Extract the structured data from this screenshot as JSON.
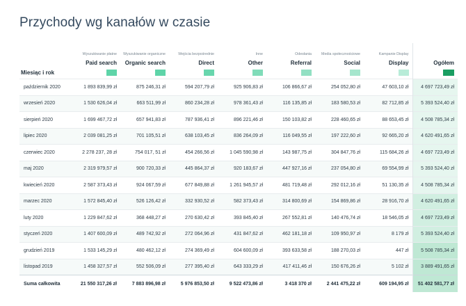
{
  "title": "Przychody wg kanałów w czasie",
  "row_header": "Miesiąc i rok",
  "colors": {
    "paid_search": "#5ed4a8",
    "organic_search": "#5ed4a8",
    "direct": "#68d6ad",
    "other": "#80dcb9",
    "referral": "#92e0c3",
    "social": "#a5e6cd",
    "display": "#b8ecd8",
    "total": "#1a9e62"
  },
  "columns": [
    {
      "sub": "Wyszukiwanie płatne",
      "label": "Paid search",
      "color": "#5ed4a8"
    },
    {
      "sub": "Wyszukiwanie organiczne",
      "label": "Organic search",
      "color": "#5ed4a8"
    },
    {
      "sub": "Wejścia bezpośrednie",
      "label": "Direct",
      "color": "#68d6ad"
    },
    {
      "sub": "Inne",
      "label": "Other",
      "color": "#80dcb9"
    },
    {
      "sub": "Odesłania",
      "label": "Referral",
      "color": "#92e0c3"
    },
    {
      "sub": "Media społecznościowe",
      "label": "Social",
      "color": "#a5e6cd"
    },
    {
      "sub": "Kampanie Display",
      "label": "Display",
      "color": "#b8ecd8"
    },
    {
      "sub": "",
      "label": "Ogółem",
      "color": "#1a9e62"
    }
  ],
  "rows": [
    {
      "month": "październik 2020",
      "values": [
        "1 893 839,99 zł",
        "875 246,31 zł",
        "594 207,79 zł",
        "925 906,83 zł",
        "106 866,67 zł",
        "254 052,80 zł",
        "47 603,10 zł",
        "4 697 723,49 zł"
      ]
    },
    {
      "month": "wrzesień 2020",
      "values": [
        "1 530 626,04 zł",
        "663 511,99 zł",
        "860 234,28 zł",
        "978 361,43 zł",
        "116 135,85 zł",
        "183 580,53 zł",
        "82 712,85 zł",
        "5 393 524,40 zł"
      ]
    },
    {
      "month": "sierpień 2020",
      "values": [
        "1 699 467,72 zł",
        "657 941,83 zł",
        "787 936,41 zł",
        "896 221,46 zł",
        "150 103,82 zł",
        "228 460,65 zł",
        "88 653,45 zł",
        "4 508 785,34 zł"
      ]
    },
    {
      "month": "lipiec 2020",
      "values": [
        "2 039 081,25 zł",
        "701 105,51 zł",
        "638 103,45 zł",
        "836 264,09 zł",
        "116 049,55 zł",
        "197 222,60 zł",
        "92 665,20 zł",
        "4 620 491,65 zł"
      ]
    },
    {
      "month": "czerwiec 2020",
      "values": [
        "2 278 237, 28 zł",
        "754 017, 51 zł",
        "454 266,56 zł",
        "1 045 590,98 zł",
        "143 987,75 zł",
        "304 847,76 zł",
        "115 684,26 zł",
        "4 697 723,49 zł"
      ]
    },
    {
      "month": "maj 2020",
      "values": [
        "2 319 979,57 zł",
        "900 720,33 zł",
        "445 864,37 zł",
        "920 183,67 zł",
        "447 927,16 zł",
        "237 054,80 zł",
        "69 554,99 zł",
        "5 393 524,40 zł"
      ]
    },
    {
      "month": "kwiecień 2020",
      "values": [
        "2 587 373,43 zł",
        "924 067,59 zł",
        "677 849,88 zł",
        "1 261 945,57 zł",
        "481 719,48 zł",
        "292 012,16 zł",
        "51 130,35 zł",
        "4 508 785,34 zł"
      ]
    },
    {
      "month": "marzec 2020",
      "values": [
        "1 572 845,40 zł",
        "526 126,42 zł",
        "332 930,52 zł",
        "582 373,43 zł",
        "314 800,69 zł",
        "154 869,86 zł",
        "28 916,70 zł",
        "4 620 491,65 zł"
      ]
    },
    {
      "month": "luty 2020",
      "values": [
        "1 229 847,62 zł",
        "368 448,27 zł",
        "270 630,42 zł",
        "393 845,40 zł",
        "267 552,81 zł",
        "140 476,74 zł",
        "18 546,05 zł",
        "4 697 723,49 zł"
      ]
    },
    {
      "month": "styczeń 2020",
      "values": [
        "1 407 600,09 zł",
        "489 742,92 zł",
        "272 064,96 zł",
        "431 847,62 zł",
        "462 181,18 zł",
        "109 950,97 zł",
        "8 179 zł",
        "5 393 524,40 zł"
      ]
    },
    {
      "month": "grudzień 2019",
      "values": [
        "1 533 145,29 zł",
        "480 462,12 zł",
        "274 369,49 zł",
        "604 600,09 zł",
        "393 633,58 zł",
        "188 270,03 zł",
        "447 zł",
        "5 508 785,34 zł"
      ]
    },
    {
      "month": "listopad 2019",
      "values": [
        "1 458 327,57 zł",
        "552 506,09 zł",
        "277 395,40 zł",
        "643 333,29 zł",
        "417 411,46 zł",
        "150 676,26 zł",
        "5 102 zł",
        "3 889 491,65 zł"
      ]
    }
  ],
  "totals": {
    "label": "Suma całkowita",
    "values": [
      "21 550 317,26 zł",
      "7 883 896,98 zł",
      "5 976 853,50 zł",
      "9 522 473,86 zł",
      "3 418 370 zł",
      "2 441 475,22 zł",
      "609 194,95 zł",
      "51 402 581,77 zł"
    ]
  }
}
